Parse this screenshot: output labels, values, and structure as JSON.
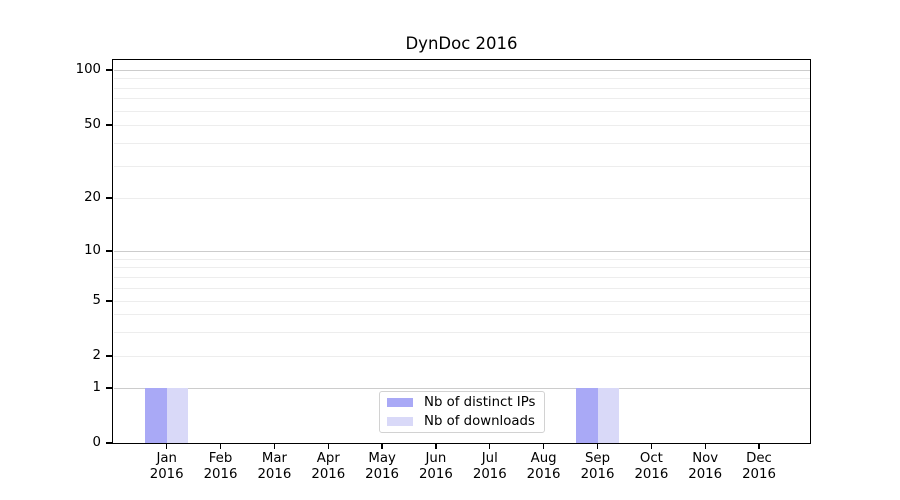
{
  "chart_data": {
    "type": "bar",
    "title": "DynDoc 2016",
    "categories": [
      "Jan 2016",
      "Feb 2016",
      "Mar 2016",
      "Apr 2016",
      "May 2016",
      "Jun 2016",
      "Jul 2016",
      "Aug 2016",
      "Sep 2016",
      "Oct 2016",
      "Nov 2016",
      "Dec 2016"
    ],
    "series": [
      {
        "name": "Nb of distinct IPs",
        "color": "#a9a9f6",
        "values": [
          1,
          0,
          0,
          0,
          0,
          0,
          0,
          0,
          1,
          0,
          0,
          0
        ]
      },
      {
        "name": "Nb of downloads",
        "color": "#d9d9f8",
        "values": [
          1,
          0,
          0,
          0,
          0,
          0,
          0,
          0,
          1,
          0,
          0,
          0
        ]
      }
    ],
    "xlabel": "",
    "ylabel": "",
    "y_axis": {
      "scale": "log (linear segment below 1)",
      "tick_labels": [
        0,
        1,
        2,
        5,
        10,
        20,
        50,
        100
      ],
      "minor_gridlines": [
        3,
        4,
        6,
        7,
        8,
        9,
        30,
        40,
        60,
        70,
        80,
        90
      ],
      "major_gridlines": [
        1,
        10,
        100
      ],
      "ylim": [
        0,
        110
      ]
    },
    "grid": {
      "horizontal": true,
      "major_color": "#cccccc",
      "minor_color": "#ededed"
    },
    "legend": {
      "position": "lower center"
    }
  }
}
